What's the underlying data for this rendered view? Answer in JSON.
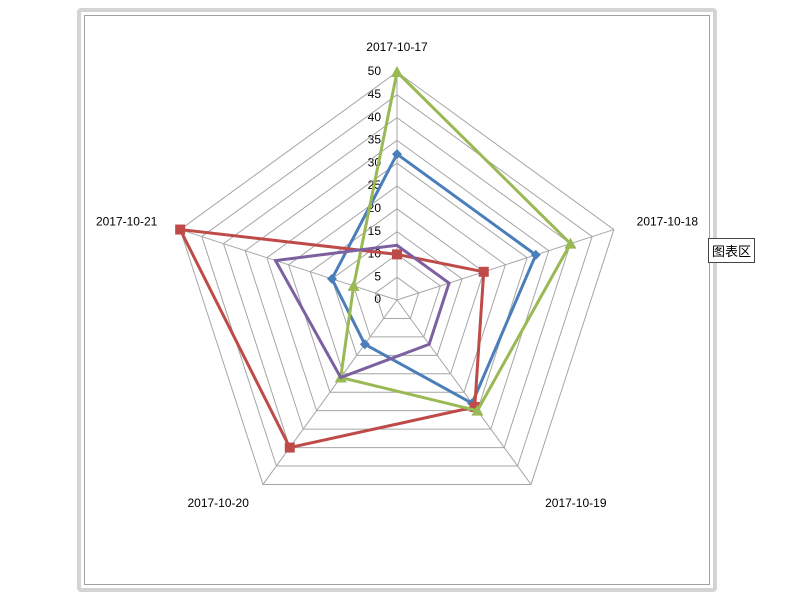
{
  "chart_data": {
    "type": "radar",
    "categories": [
      "2017-10-17",
      "2017-10-18",
      "2017-10-19",
      "2017-10-20",
      "2017-10-21"
    ],
    "series": [
      {
        "color": "#4a7ebb",
        "marker": "diamond",
        "values": [
          32,
          32,
          28,
          12,
          15
        ]
      },
      {
        "color": "#be4b48",
        "marker": "square",
        "values": [
          10,
          20,
          29,
          40,
          50
        ]
      },
      {
        "color": "#98b954",
        "marker": "triangle",
        "values": [
          50,
          40,
          30,
          21,
          10
        ]
      },
      {
        "color": "#7d60a0",
        "marker": "none",
        "values": [
          12,
          12,
          12,
          21,
          28
        ]
      }
    ],
    "rlim": [
      0,
      50
    ],
    "rticks": [
      0,
      5,
      10,
      15,
      20,
      25,
      30,
      35,
      40,
      45,
      50
    ],
    "grid": true
  },
  "tooltip": "图表区"
}
